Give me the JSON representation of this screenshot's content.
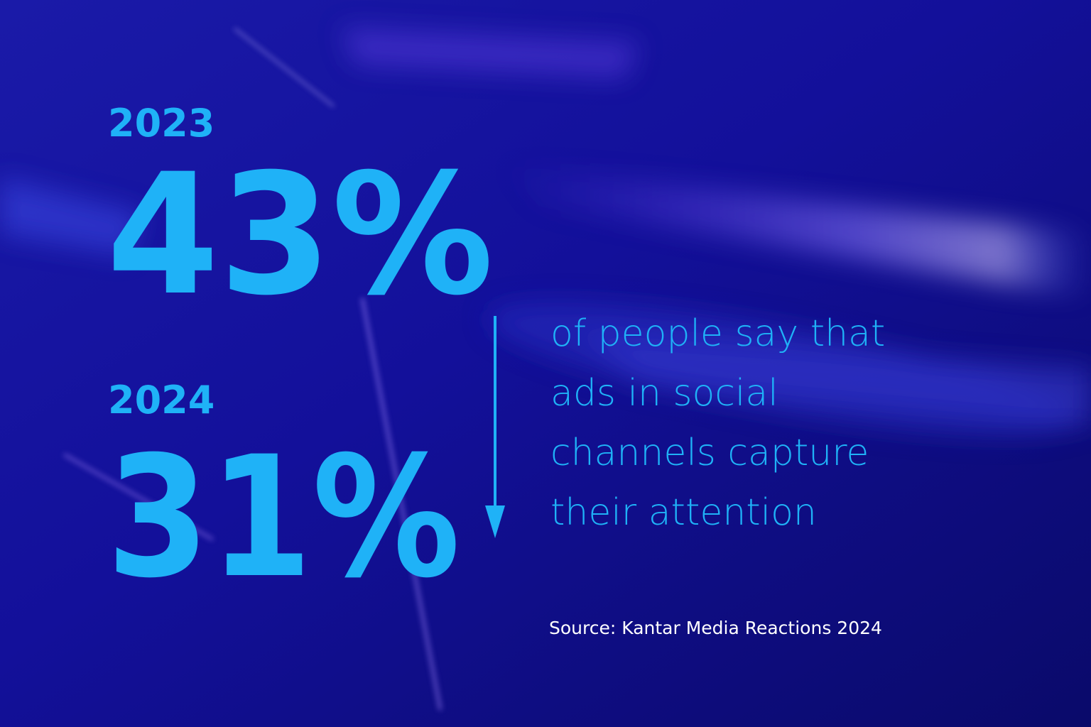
{
  "stats": [
    {
      "year": "2023",
      "value": "43%"
    },
    {
      "year": "2024",
      "value": "31%"
    }
  ],
  "description": [
    "of people say that",
    "ads in social",
    "channels capture",
    "their attention"
  ],
  "source": "Source: Kantar Media Reactions 2024"
}
